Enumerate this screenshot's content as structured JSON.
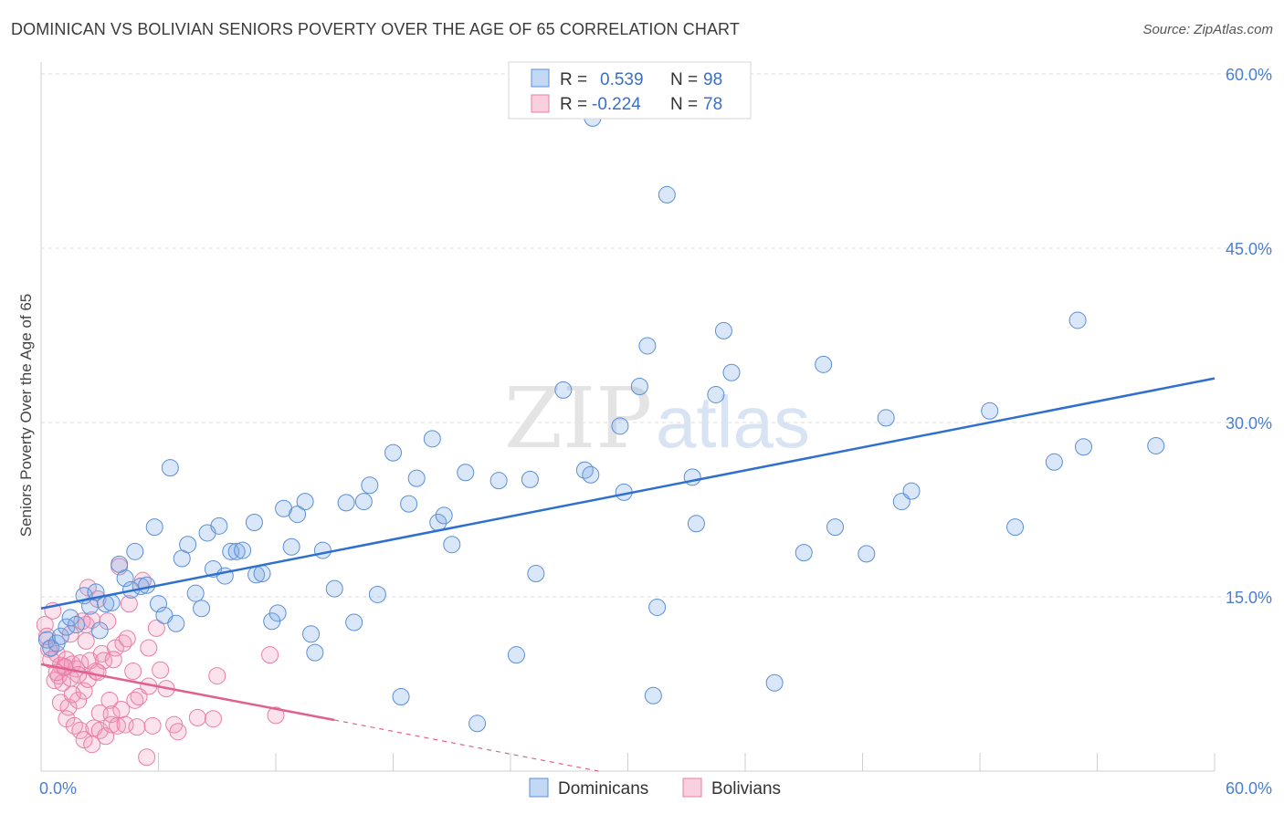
{
  "title": "DOMINICAN VS BOLIVIAN SENIORS POVERTY OVER THE AGE OF 65 CORRELATION CHART",
  "source": "Source: ZipAtlas.com",
  "watermark": {
    "zip": "ZIP",
    "atlas": "atlas"
  },
  "colors": {
    "blue": "#5b8fd6",
    "blue_fill": "rgba(120,168,230,0.28)",
    "blue_line": "#2e6fd0",
    "pink": "#e87fa3",
    "pink_fill": "rgba(240,150,185,0.28)",
    "pink_line": "#e0608f",
    "grid": "#dddddd",
    "tick_text": "#4a7fcf"
  },
  "legend": {
    "r_label": "R =",
    "n_label": "N =",
    "rows": [
      {
        "series": "Dominicans",
        "r": "0.539",
        "n": "98"
      },
      {
        "series": "Bolivians",
        "r": "-0.224",
        "n": "78"
      }
    ]
  },
  "chart_data": {
    "type": "scatter",
    "title": "DOMINICAN VS BOLIVIAN SENIORS POVERTY OVER THE AGE OF 65 CORRELATION CHART",
    "xlabel": "",
    "ylabel": "Seniors Poverty Over the Age of 65",
    "xlim": [
      0,
      60
    ],
    "ylim": [
      0,
      60
    ],
    "x_tick_labels": [
      "0.0%",
      "60.0%"
    ],
    "y_ticks": [
      15,
      30,
      45,
      60
    ],
    "y_tick_labels": [
      "15.0%",
      "30.0%",
      "45.0%",
      "60.0%"
    ],
    "x_minor_ticks": [
      0,
      6,
      12,
      18,
      24,
      30,
      36,
      42,
      48,
      54,
      60
    ],
    "grid": true,
    "legend_position": "bottom-center",
    "series": [
      {
        "name": "Dominicans",
        "r": 0.539,
        "n": 98,
        "trend": {
          "x": [
            0,
            60
          ],
          "y": [
            14.0,
            33.8
          ]
        },
        "points": [
          [
            0.3,
            11.3
          ],
          [
            0.5,
            10.6
          ],
          [
            0.8,
            11.0
          ],
          [
            1.0,
            11.6
          ],
          [
            1.3,
            12.4
          ],
          [
            1.5,
            13.2
          ],
          [
            1.8,
            12.6
          ],
          [
            2.2,
            15.1
          ],
          [
            2.5,
            14.2
          ],
          [
            2.8,
            15.4
          ],
          [
            3.0,
            12.1
          ],
          [
            3.3,
            14.4
          ],
          [
            3.6,
            14.5
          ],
          [
            4.0,
            17.8
          ],
          [
            4.3,
            16.6
          ],
          [
            4.6,
            15.6
          ],
          [
            4.8,
            18.9
          ],
          [
            5.1,
            15.9
          ],
          [
            5.4,
            16.0
          ],
          [
            5.8,
            21.0
          ],
          [
            6.0,
            14.4
          ],
          [
            6.3,
            13.4
          ],
          [
            6.6,
            26.1
          ],
          [
            6.9,
            12.7
          ],
          [
            7.2,
            18.3
          ],
          [
            7.5,
            19.5
          ],
          [
            7.9,
            15.3
          ],
          [
            8.2,
            14.0
          ],
          [
            8.5,
            20.5
          ],
          [
            8.8,
            17.4
          ],
          [
            9.1,
            21.1
          ],
          [
            9.4,
            16.8
          ],
          [
            9.7,
            18.9
          ],
          [
            10.0,
            18.9
          ],
          [
            10.3,
            19.0
          ],
          [
            10.9,
            21.4
          ],
          [
            11.0,
            16.9
          ],
          [
            11.3,
            17.0
          ],
          [
            11.8,
            12.9
          ],
          [
            12.1,
            13.6
          ],
          [
            12.4,
            22.6
          ],
          [
            12.8,
            19.3
          ],
          [
            13.1,
            22.1
          ],
          [
            13.5,
            23.2
          ],
          [
            13.8,
            11.8
          ],
          [
            14.0,
            10.2
          ],
          [
            14.4,
            19.0
          ],
          [
            15.0,
            15.7
          ],
          [
            15.6,
            23.1
          ],
          [
            16.0,
            12.8
          ],
          [
            16.5,
            23.2
          ],
          [
            16.8,
            24.6
          ],
          [
            17.2,
            15.2
          ],
          [
            18.0,
            27.4
          ],
          [
            18.4,
            6.4
          ],
          [
            18.8,
            23.0
          ],
          [
            19.2,
            25.2
          ],
          [
            20.0,
            28.6
          ],
          [
            20.3,
            21.4
          ],
          [
            20.6,
            22.0
          ],
          [
            21.0,
            19.5
          ],
          [
            21.7,
            25.7
          ],
          [
            22.3,
            4.1
          ],
          [
            23.4,
            25.0
          ],
          [
            24.3,
            10.0
          ],
          [
            25.0,
            25.1
          ],
          [
            25.3,
            17.0
          ],
          [
            26.7,
            32.8
          ],
          [
            27.8,
            25.9
          ],
          [
            28.1,
            25.5
          ],
          [
            29.6,
            29.7
          ],
          [
            29.8,
            24.0
          ],
          [
            30.6,
            33.1
          ],
          [
            31.0,
            36.6
          ],
          [
            31.3,
            6.5
          ],
          [
            31.5,
            14.1
          ],
          [
            32.0,
            49.6
          ],
          [
            33.3,
            25.3
          ],
          [
            33.5,
            21.3
          ],
          [
            34.5,
            32.4
          ],
          [
            34.9,
            37.9
          ],
          [
            35.3,
            34.3
          ],
          [
            37.5,
            7.6
          ],
          [
            39.0,
            18.8
          ],
          [
            40.0,
            35.0
          ],
          [
            40.6,
            21.0
          ],
          [
            42.2,
            18.7
          ],
          [
            43.2,
            30.4
          ],
          [
            44.0,
            23.2
          ],
          [
            44.5,
            24.1
          ],
          [
            48.5,
            31.0
          ],
          [
            49.8,
            21.0
          ],
          [
            51.8,
            26.6
          ],
          [
            53.0,
            38.8
          ],
          [
            53.3,
            27.9
          ],
          [
            57.0,
            28.0
          ],
          [
            28.2,
            56.2
          ]
        ]
      },
      {
        "name": "Bolivians",
        "r": -0.224,
        "n": 78,
        "trend": {
          "x": [
            0,
            15
          ],
          "y": [
            9.2,
            4.4
          ]
        },
        "trend_dashed": {
          "x": [
            15,
            28.5
          ],
          "y": [
            4.4,
            0.0
          ]
        },
        "points": [
          [
            0.2,
            12.6
          ],
          [
            0.3,
            11.6
          ],
          [
            0.4,
            10.5
          ],
          [
            0.5,
            9.6
          ],
          [
            0.6,
            13.8
          ],
          [
            0.7,
            7.8
          ],
          [
            0.8,
            10.1
          ],
          [
            0.9,
            8.2
          ],
          [
            1.0,
            9.1
          ],
          [
            1.0,
            5.9
          ],
          [
            1.1,
            7.6
          ],
          [
            1.2,
            8.9
          ],
          [
            1.3,
            4.5
          ],
          [
            1.3,
            9.6
          ],
          [
            1.4,
            5.5
          ],
          [
            1.5,
            8.0
          ],
          [
            1.5,
            11.8
          ],
          [
            1.6,
            9.2
          ],
          [
            1.7,
            3.9
          ],
          [
            1.8,
            8.8
          ],
          [
            1.9,
            6.1
          ],
          [
            2.0,
            3.5
          ],
          [
            2.0,
            9.3
          ],
          [
            2.1,
            12.9
          ],
          [
            2.2,
            6.9
          ],
          [
            2.2,
            2.7
          ],
          [
            2.3,
            12.6
          ],
          [
            2.4,
            7.9
          ],
          [
            2.4,
            15.8
          ],
          [
            2.5,
            9.5
          ],
          [
            2.6,
            2.3
          ],
          [
            2.6,
            13.0
          ],
          [
            2.7,
            3.7
          ],
          [
            2.8,
            8.6
          ],
          [
            2.9,
            14.8
          ],
          [
            3.0,
            5.0
          ],
          [
            3.0,
            3.5
          ],
          [
            3.1,
            10.1
          ],
          [
            3.2,
            9.5
          ],
          [
            3.3,
            3.0
          ],
          [
            3.4,
            12.9
          ],
          [
            3.5,
            6.1
          ],
          [
            3.6,
            4.0
          ],
          [
            3.6,
            4.9
          ],
          [
            3.8,
            10.6
          ],
          [
            3.9,
            3.9
          ],
          [
            4.0,
            17.6
          ],
          [
            4.2,
            11.0
          ],
          [
            4.3,
            4.0
          ],
          [
            4.4,
            11.4
          ],
          [
            4.5,
            14.4
          ],
          [
            4.7,
            8.6
          ],
          [
            4.8,
            6.1
          ],
          [
            4.9,
            3.8
          ],
          [
            5.0,
            6.4
          ],
          [
            5.2,
            16.4
          ],
          [
            5.4,
            1.2
          ],
          [
            5.5,
            7.3
          ],
          [
            5.5,
            10.6
          ],
          [
            5.7,
            3.9
          ],
          [
            5.9,
            12.3
          ],
          [
            6.1,
            8.7
          ],
          [
            6.4,
            7.1
          ],
          [
            6.8,
            4.0
          ],
          [
            7.0,
            3.4
          ],
          [
            8.0,
            4.6
          ],
          [
            8.8,
            4.5
          ],
          [
            9.0,
            8.2
          ],
          [
            11.7,
            10.0
          ],
          [
            12.0,
            4.8
          ],
          [
            1.9,
            8.3
          ],
          [
            1.2,
            9.0
          ],
          [
            2.9,
            8.5
          ],
          [
            0.8,
            8.5
          ],
          [
            1.6,
            6.6
          ],
          [
            3.7,
            9.6
          ],
          [
            2.3,
            11.2
          ],
          [
            4.1,
            5.3
          ]
        ]
      }
    ]
  }
}
